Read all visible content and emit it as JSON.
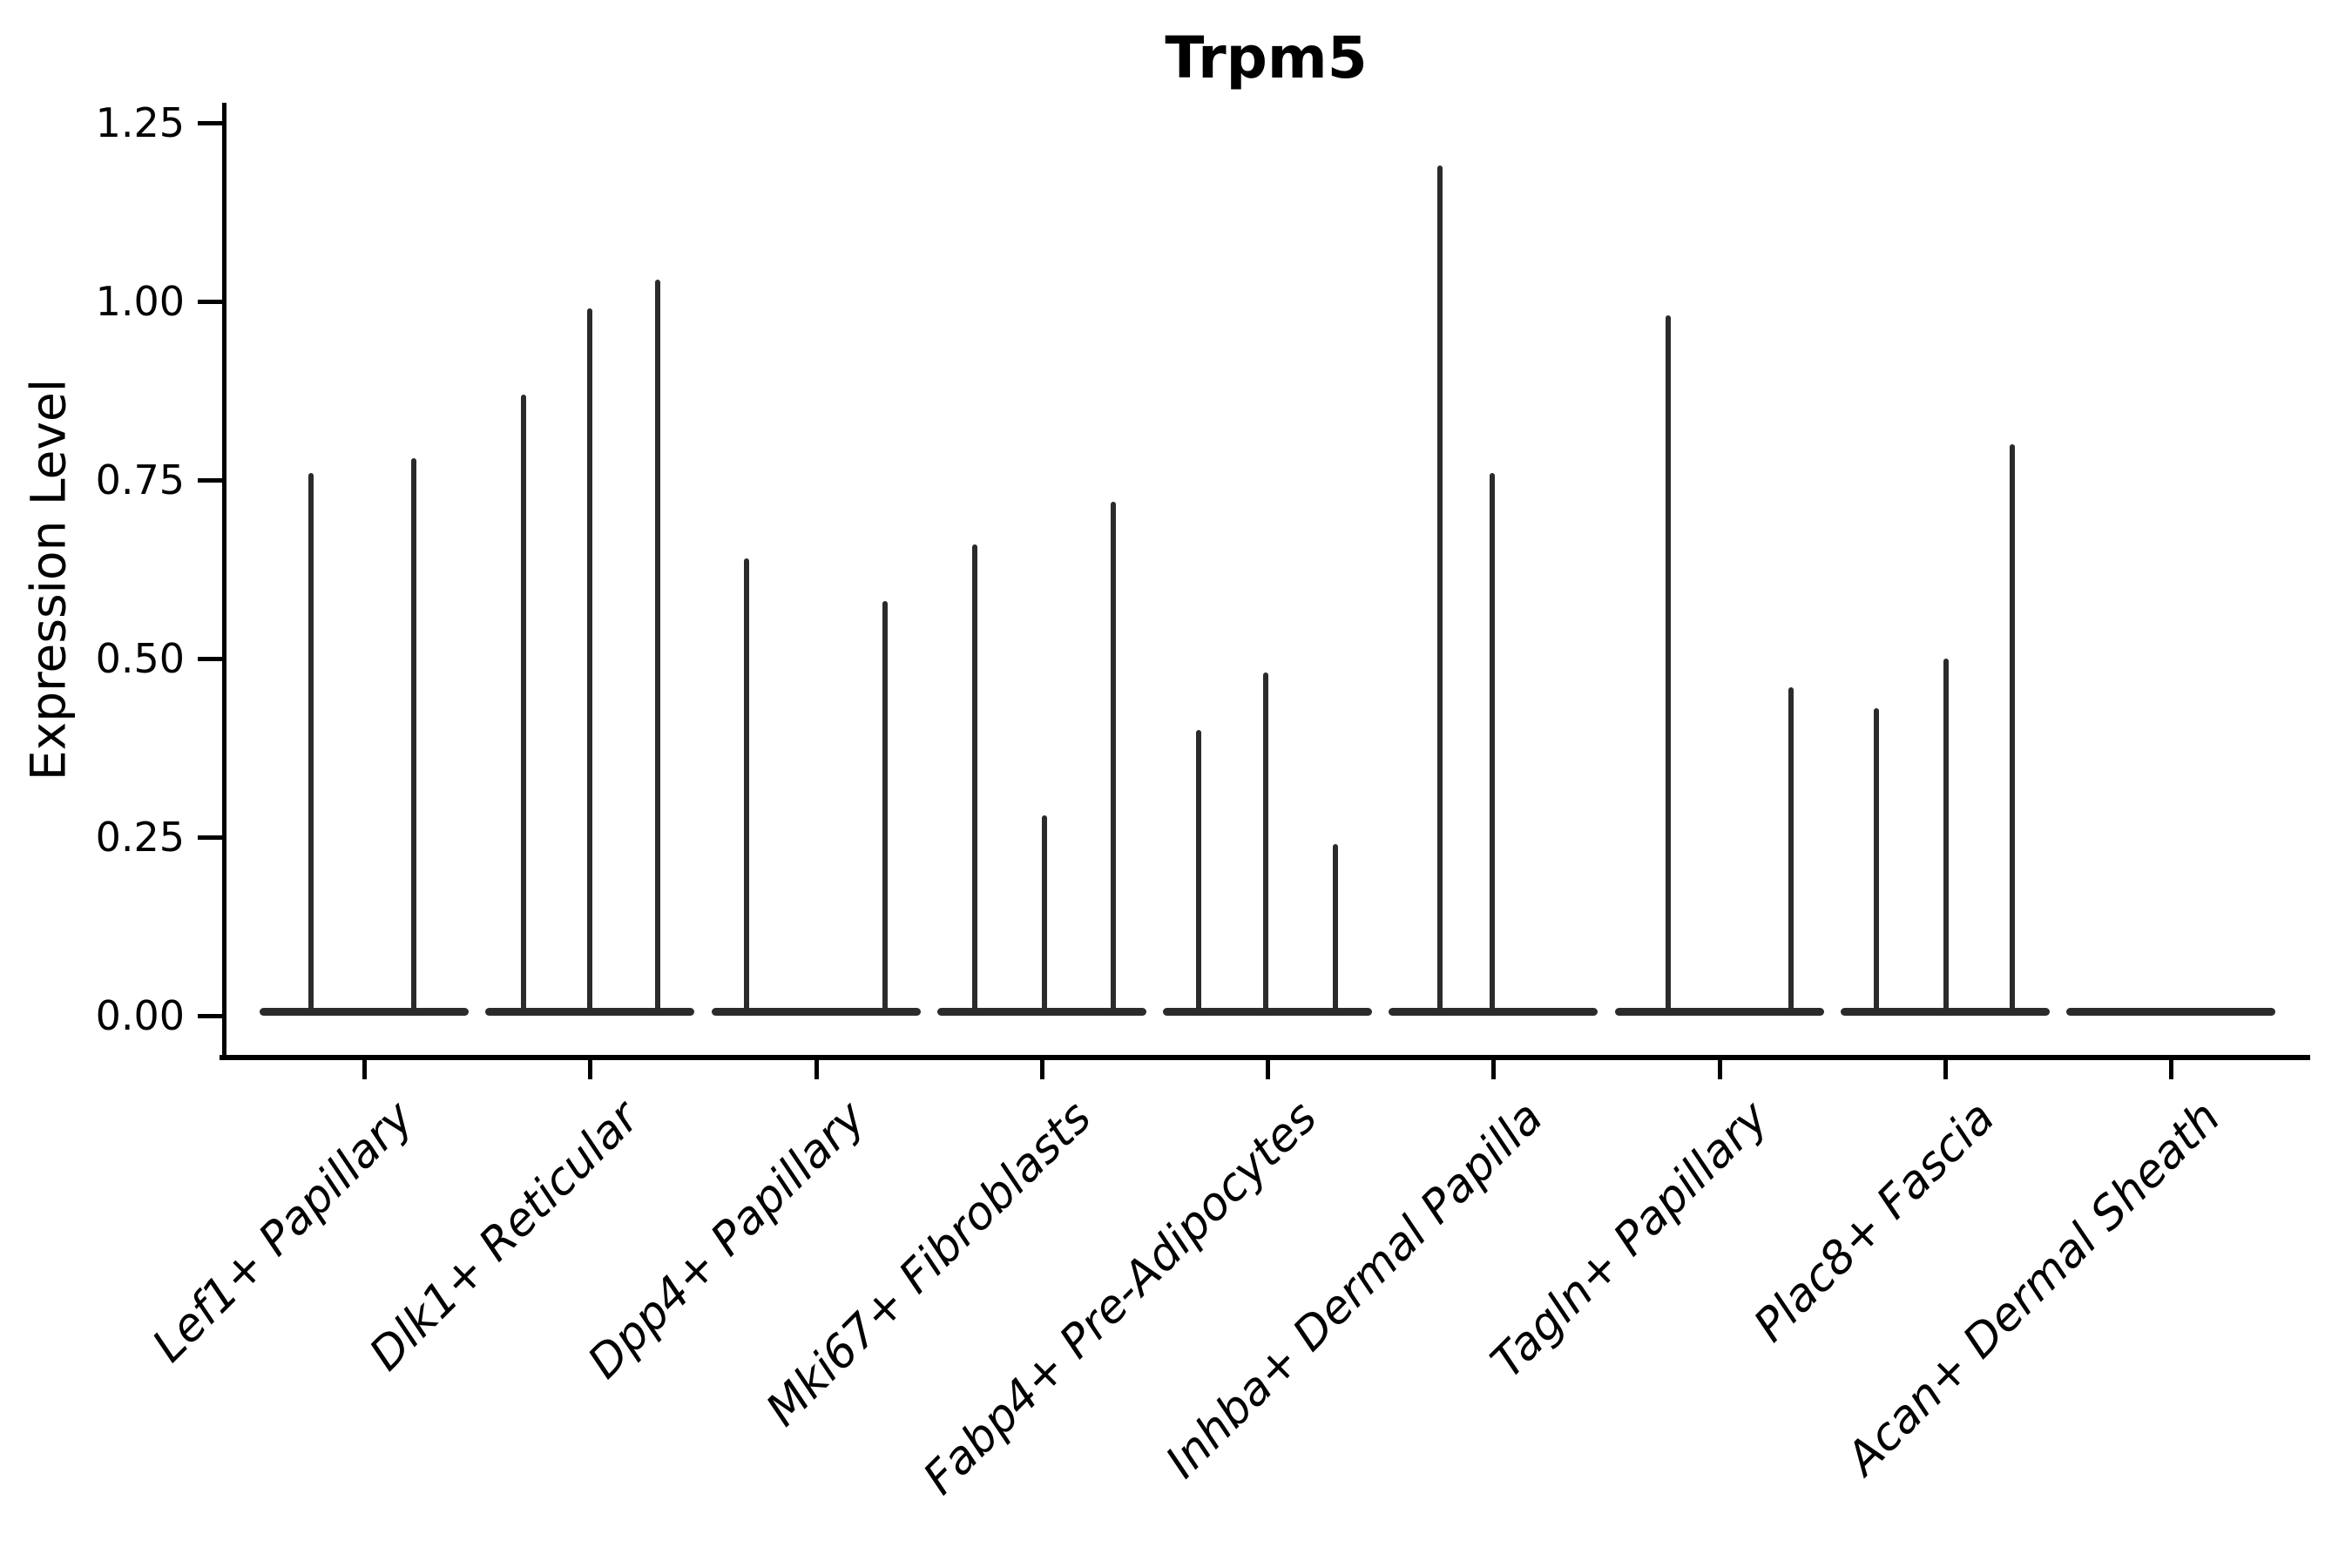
{
  "title": "Trpm5",
  "y_axis": {
    "label": "Expression Level",
    "tick_labels": [
      "1.25",
      "1.00",
      "0.75",
      "0.50",
      "0.25",
      "0.00"
    ],
    "tick_values": [
      1.25,
      1.0,
      0.75,
      0.5,
      0.25,
      0.0
    ]
  },
  "colors": {
    "violin": "#2b2b2b",
    "axis": "#000000",
    "text": "#000000",
    "background": "#ffffff"
  },
  "chart_data": {
    "type": "violin",
    "title": "Trpm5",
    "xlabel": "",
    "ylabel": "Expression Level",
    "ylim": [
      0,
      1.25
    ],
    "y_ticks": [
      0,
      0.25,
      0.5,
      0.75,
      1.0,
      1.25
    ],
    "grid": false,
    "legend": false,
    "description": "Collapsed violins: each category is a flat density line at expression 0 with thin vertical density spikes at the listed expression values. dx is the horizontal offset of each spike from the category center (px in the 2700px-wide figure).",
    "categories": [
      "Lef1+ Papillary",
      "Dlk1+ Reticular",
      "Dpp4+ Papillary",
      "Mki67+ Fibroblasts",
      "Fabp4+ Pre-Adipocytes",
      "Inhba+ Dermal Papilla",
      "Tagln+ Papillary",
      "Plac8+ Fascia",
      "Acan+ Dermal Sheath"
    ],
    "series": [
      {
        "name": "Lef1+ Papillary",
        "baseline_value": 0,
        "spike_values": [
          0.76,
          0.78
        ],
        "spikes": [
          {
            "dx": -61,
            "v": 0.76
          },
          {
            "dx": 57,
            "v": 0.78
          }
        ]
      },
      {
        "name": "Dlk1+ Reticular",
        "baseline_value": 0,
        "spike_values": [
          0.87,
          0.99,
          1.03
        ],
        "spikes": [
          {
            "dx": -76,
            "v": 0.87
          },
          {
            "dx": 0,
            "v": 0.99
          },
          {
            "dx": 78,
            "v": 1.03
          }
        ]
      },
      {
        "name": "Dpp4+ Papillary",
        "baseline_value": 0,
        "spike_values": [
          0.64,
          0.58
        ],
        "spikes": [
          {
            "dx": -80,
            "v": 0.64
          },
          {
            "dx": 79,
            "v": 0.58
          }
        ]
      },
      {
        "name": "Mki67+ Fibroblasts",
        "baseline_value": 0,
        "spike_values": [
          0.66,
          0.28,
          0.72
        ],
        "spikes": [
          {
            "dx": -77,
            "v": 0.66
          },
          {
            "dx": 3,
            "v": 0.28
          },
          {
            "dx": 82,
            "v": 0.72
          }
        ]
      },
      {
        "name": "Fabp4+ Pre-Adipocytes",
        "baseline_value": 0,
        "spike_values": [
          0.4,
          0.48,
          0.24
        ],
        "spikes": [
          {
            "dx": -79,
            "v": 0.4
          },
          {
            "dx": -2,
            "v": 0.48
          },
          {
            "dx": 78,
            "v": 0.24
          }
        ]
      },
      {
        "name": "Inhba+ Dermal Papilla",
        "baseline_value": 0,
        "spike_values": [
          1.19,
          0.76
        ],
        "spikes": [
          {
            "dx": -61,
            "v": 1.19
          },
          {
            "dx": -1,
            "v": 0.76
          }
        ]
      },
      {
        "name": "Tagln+ Papillary",
        "baseline_value": 0,
        "spike_values": [
          0.98,
          0.46
        ],
        "spikes": [
          {
            "dx": -59,
            "v": 0.98
          },
          {
            "dx": 82,
            "v": 0.46
          }
        ]
      },
      {
        "name": "Plac8+ Fascia",
        "baseline_value": 0,
        "spike_values": [
          0.43,
          0.5,
          0.8
        ],
        "spikes": [
          {
            "dx": -79,
            "v": 0.43
          },
          {
            "dx": 1,
            "v": 0.5
          },
          {
            "dx": 77,
            "v": 0.8
          }
        ]
      },
      {
        "name": "Acan+ Dermal Sheath",
        "baseline_value": 0,
        "spike_values": [],
        "spikes": []
      }
    ]
  }
}
